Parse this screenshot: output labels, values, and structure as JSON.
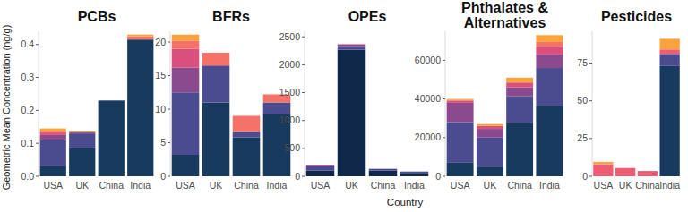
{
  "chart_data": [
    {
      "type": "bar",
      "stacked": true,
      "grid": false,
      "title": "PCBs",
      "ylabel": "Geometric Mean Concentration (ng/g)",
      "categories": [
        "USA",
        "UK",
        "China",
        "India"
      ],
      "ylim": [
        0,
        0.44
      ],
      "yticks": [
        {
          "value": 0,
          "label": "0.0"
        },
        0.1,
        0.2,
        0.3,
        0.4
      ],
      "series": [
        {
          "color": "#173a5e",
          "values": [
            0.03,
            0.085,
            0.23,
            0.415
          ]
        },
        {
          "color": "#4b4b8f",
          "values": [
            0.08,
            0.045,
            0,
            0
          ]
        },
        {
          "color": "#8b4a8e",
          "values": [
            0.015,
            0.003,
            0,
            0
          ]
        },
        {
          "color": "#e0567e",
          "values": [
            0.01,
            0,
            0,
            0
          ]
        },
        {
          "color": "#f47267",
          "values": [
            0,
            0,
            0,
            0.01
          ]
        },
        {
          "color": "#fba33a",
          "values": [
            0.01,
            0.003,
            0,
            0.005
          ]
        }
      ]
    },
    {
      "type": "bar",
      "stacked": true,
      "grid": false,
      "title": "BFRs",
      "categories": [
        "USA",
        "UK",
        "China",
        "India"
      ],
      "ylim": [
        0,
        21.6
      ],
      "yticks": [
        0,
        5,
        10,
        15,
        20
      ],
      "series": [
        {
          "color": "#173a5e",
          "values": [
            3.2,
            11,
            5.8,
            9.2
          ]
        },
        {
          "color": "#4b4b8f",
          "values": [
            9.3,
            5.5,
            0.8,
            1.8
          ]
        },
        {
          "color": "#8b4a8e",
          "values": [
            3.7,
            0,
            0,
            0
          ]
        },
        {
          "color": "#d9507f",
          "values": [
            2.8,
            0,
            0,
            0
          ]
        },
        {
          "color": "#f47267",
          "values": [
            1.2,
            1.9,
            2.4,
            1.2
          ]
        },
        {
          "color": "#fba33a",
          "values": [
            0.9,
            0,
            0,
            0
          ]
        }
      ]
    },
    {
      "type": "bar",
      "stacked": true,
      "grid": false,
      "title": "OPEs",
      "xlabel": "Country",
      "categories": [
        "USA",
        "UK",
        "China",
        "India"
      ],
      "ylim": [
        0,
        2600
      ],
      "yticks": [
        0,
        500,
        1000,
        1500,
        2000,
        2500
      ],
      "series": [
        {
          "color": "#10294a",
          "values": [
            100,
            2270,
            100,
            60
          ]
        },
        {
          "color": "#4b4b8f",
          "values": [
            80,
            60,
            30,
            25
          ]
        },
        {
          "color": "#8b4a8e",
          "values": [
            15,
            30,
            5,
            0
          ]
        },
        {
          "color": "#e0567e",
          "values": [
            10,
            10,
            0,
            0
          ]
        }
      ]
    },
    {
      "type": "bar",
      "stacked": true,
      "grid": false,
      "title": "Phthalates & Alternatives",
      "categories": [
        "USA",
        "UK",
        "China",
        "India"
      ],
      "ylim": [
        0,
        75000
      ],
      "yticks": [
        0,
        20000,
        40000,
        60000
      ],
      "series": [
        {
          "color": "#173a5e",
          "values": [
            7000,
            5000,
            27500,
            36500
          ]
        },
        {
          "color": "#4b4b8f",
          "values": [
            21000,
            15000,
            14000,
            19500
          ]
        },
        {
          "color": "#8b4a8e",
          "values": [
            10000,
            4500,
            4500,
            7000
          ]
        },
        {
          "color": "#d9507f",
          "values": [
            1000,
            1500,
            2500,
            4000
          ]
        },
        {
          "color": "#f47267",
          "values": [
            500,
            0,
            0,
            2500
          ]
        },
        {
          "color": "#fba33a",
          "values": [
            500,
            1000,
            2500,
            3500
          ]
        }
      ]
    },
    {
      "type": "bar",
      "stacked": true,
      "grid": false,
      "title": "Pesticides",
      "categories": [
        "USA",
        "UK",
        "China",
        "India"
      ],
      "ylim": [
        0,
        96
      ],
      "yticks": [
        0,
        25,
        50,
        75
      ],
      "series": [
        {
          "color": "#173a5e",
          "values": [
            0,
            0,
            0,
            73
          ]
        },
        {
          "color": "#4b4b8f",
          "values": [
            0,
            0,
            0,
            8
          ]
        },
        {
          "color": "#ef5d75",
          "values": [
            8,
            5.5,
            3.5,
            3
          ]
        },
        {
          "color": "#fba33a",
          "values": [
            1.5,
            0,
            0,
            7
          ]
        }
      ]
    }
  ]
}
